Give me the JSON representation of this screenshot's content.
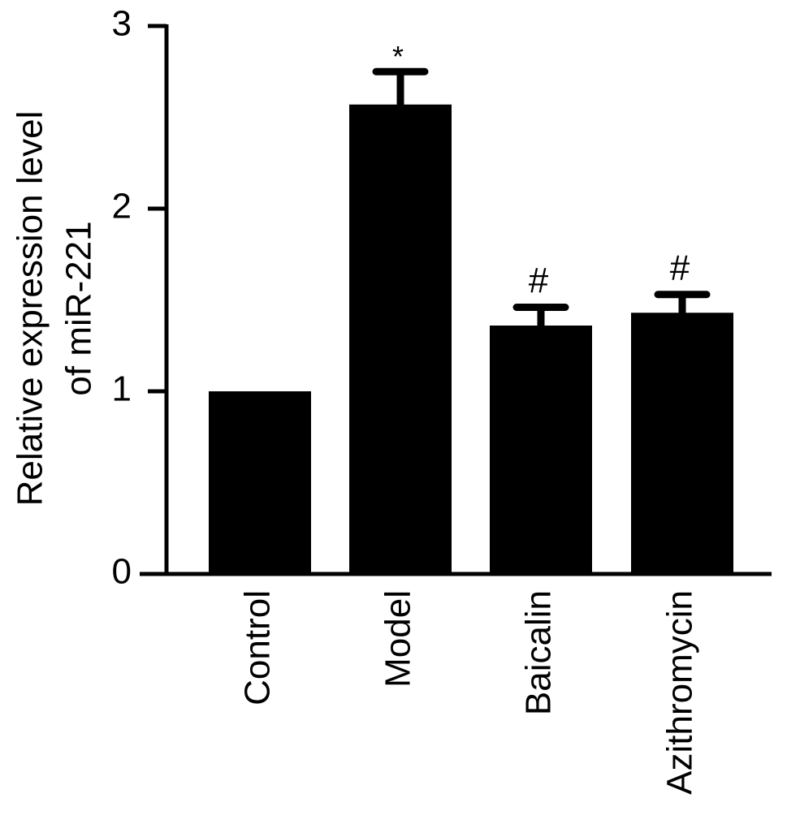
{
  "chart_data": {
    "type": "bar",
    "ylabel": [
      "Relative expression level",
      "of miR-221"
    ],
    "categories": [
      "Control",
      "Model",
      "Baicalin",
      "Azithromycin"
    ],
    "values": [
      1.0,
      2.57,
      1.36,
      1.43
    ],
    "errors": [
      null,
      0.18,
      0.1,
      0.1
    ],
    "annotations": [
      null,
      "*",
      "#",
      "#"
    ],
    "color": "#000000",
    "ylim": [
      0,
      3
    ],
    "yticks": [
      0,
      1,
      2,
      3
    ],
    "grid": false
  }
}
